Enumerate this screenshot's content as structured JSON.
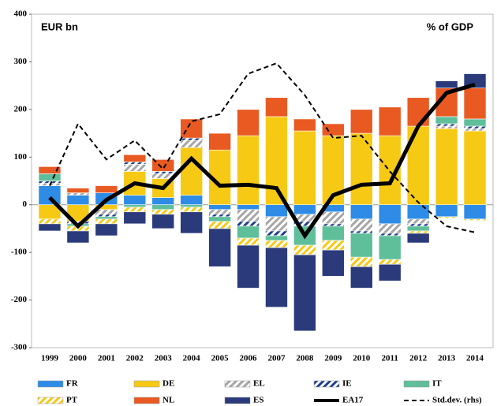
{
  "chart_data": {
    "type": "bar",
    "label_left": "EUR bn",
    "label_right": "% of GDP",
    "categories": [
      "1999",
      "2000",
      "2001",
      "2002",
      "2003",
      "2004",
      "2005",
      "2006",
      "2007",
      "2008",
      "2009",
      "2010",
      "2011",
      "2012",
      "2013",
      "2014"
    ],
    "ylim": [
      -300,
      400
    ],
    "yticks": [
      -300,
      -200,
      -100,
      0,
      100,
      200,
      300,
      400
    ],
    "series": [
      {
        "name": "FR",
        "color": "#2e8ce6",
        "values": [
          40,
          20,
          25,
          20,
          15,
          20,
          -10,
          -10,
          -25,
          -20,
          -15,
          -30,
          -40,
          -30,
          -25,
          -30
        ]
      },
      {
        "name": "DE",
        "color": "#f6c915",
        "values": [
          -30,
          -35,
          -10,
          50,
          40,
          100,
          115,
          145,
          185,
          155,
          145,
          150,
          145,
          165,
          160,
          155
        ]
      },
      {
        "name": "EL",
        "color": "#a6a6a6",
        "pattern": true,
        "values": [
          5,
          5,
          -10,
          15,
          10,
          15,
          -10,
          -25,
          -30,
          -15,
          -25,
          -25,
          -20,
          -10,
          5,
          5
        ]
      },
      {
        "name": "IE",
        "color": "#1f3f8f",
        "pattern": true,
        "values": [
          5,
          -5,
          -5,
          5,
          5,
          5,
          -5,
          -10,
          -10,
          -10,
          -5,
          -5,
          -5,
          -5,
          5,
          5
        ]
      },
      {
        "name": "IT",
        "color": "#5fbf9a",
        "values": [
          15,
          -5,
          -5,
          -5,
          -10,
          -5,
          -10,
          -25,
          -10,
          -40,
          -30,
          -50,
          -50,
          -10,
          15,
          15
        ]
      },
      {
        "name": "PT",
        "color": "#f6c915",
        "pattern": true,
        "values": [
          -10,
          -10,
          -10,
          -10,
          -10,
          -10,
          -15,
          -15,
          -15,
          -20,
          -20,
          -20,
          -10,
          -5,
          -3,
          -3
        ]
      },
      {
        "name": "NL",
        "color": "#e85a22",
        "values": [
          15,
          10,
          15,
          15,
          25,
          40,
          35,
          55,
          40,
          25,
          25,
          50,
          60,
          60,
          60,
          65
        ]
      },
      {
        "name": "ES",
        "color": "#2b3a7a",
        "values": [
          -15,
          -25,
          -25,
          -25,
          -30,
          -45,
          -80,
          -90,
          -125,
          -160,
          -55,
          -45,
          -35,
          -20,
          15,
          30
        ]
      },
      {
        "name": "EA17",
        "type": "line",
        "color": "#000000",
        "values": [
          15,
          -45,
          10,
          45,
          35,
          97,
          40,
          42,
          35,
          -65,
          20,
          42,
          45,
          165,
          235,
          252
        ]
      },
      {
        "name": "Std.dev. (rhs)",
        "type": "line",
        "dashed": true,
        "color": "#000000",
        "values": [
          40,
          170,
          95,
          135,
          75,
          175,
          190,
          275,
          297,
          230,
          140,
          145,
          70,
          5,
          -45,
          -58
        ]
      }
    ]
  }
}
